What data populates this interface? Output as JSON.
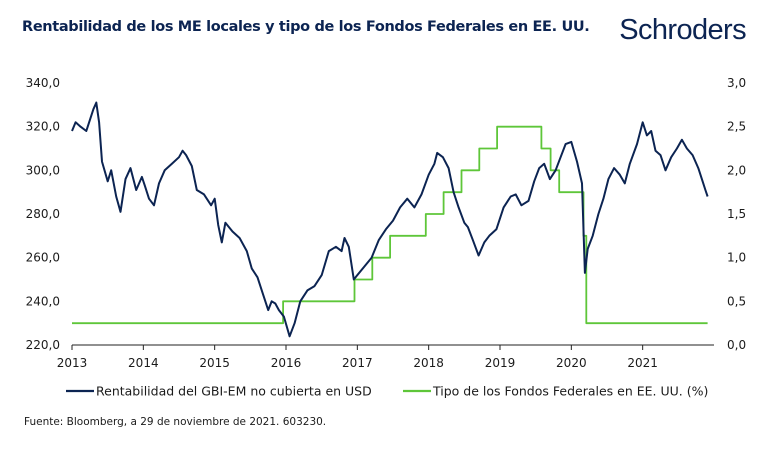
{
  "header": {
    "title": "Rentabilidad de los ME locales y tipo de los Fondos Federales en EE. UU.",
    "brand": "Schroders"
  },
  "footer": {
    "source": "Fuente: Bloomberg, a 29 de noviembre de 2021. 603230."
  },
  "colors": {
    "navy": "#0c2452",
    "green": "#5ec639"
  },
  "chart_data": {
    "type": "line",
    "title": "Rentabilidad de los ME locales y tipo de los Fondos Federales en EE. UU.",
    "xlabel": "",
    "x_ticks": [
      "2013",
      "2014",
      "2015",
      "2016",
      "2017",
      "2018",
      "2019",
      "2020",
      "2021"
    ],
    "xlim": [
      2013.0,
      2022.0
    ],
    "y_left": {
      "ticks": [
        "220,0",
        "240,0",
        "260,0",
        "280,0",
        "300,0",
        "320,0",
        "340,0"
      ],
      "ylim": [
        220,
        340
      ]
    },
    "y_right": {
      "ticks": [
        "0,0",
        "0,5",
        "1,0",
        "1,5",
        "2,0",
        "2,5",
        "3,0"
      ],
      "ylim": [
        0,
        3
      ]
    },
    "legend": {
      "position": "bottom"
    },
    "series": [
      {
        "name": "Rentabilidad del GBI-EM no cubierta en USD",
        "axis": "left",
        "points": [
          [
            2013.0,
            318
          ],
          [
            2013.05,
            322
          ],
          [
            2013.12,
            320
          ],
          [
            2013.2,
            318
          ],
          [
            2013.3,
            328
          ],
          [
            2013.34,
            331
          ],
          [
            2013.38,
            322
          ],
          [
            2013.42,
            304
          ],
          [
            2013.5,
            295
          ],
          [
            2013.55,
            300
          ],
          [
            2013.62,
            288
          ],
          [
            2013.68,
            281
          ],
          [
            2013.75,
            296
          ],
          [
            2013.82,
            301
          ],
          [
            2013.9,
            291
          ],
          [
            2013.98,
            297
          ],
          [
            2014.02,
            293
          ],
          [
            2014.08,
            287
          ],
          [
            2014.15,
            284
          ],
          [
            2014.22,
            294
          ],
          [
            2014.3,
            300
          ],
          [
            2014.4,
            303
          ],
          [
            2014.5,
            306
          ],
          [
            2014.55,
            309
          ],
          [
            2014.6,
            307
          ],
          [
            2014.68,
            302
          ],
          [
            2014.75,
            291
          ],
          [
            2014.85,
            289
          ],
          [
            2014.95,
            284
          ],
          [
            2015.0,
            287
          ],
          [
            2015.05,
            275
          ],
          [
            2015.1,
            267
          ],
          [
            2015.15,
            276
          ],
          [
            2015.25,
            272
          ],
          [
            2015.35,
            269
          ],
          [
            2015.45,
            263
          ],
          [
            2015.52,
            255
          ],
          [
            2015.6,
            251
          ],
          [
            2015.68,
            243
          ],
          [
            2015.75,
            236
          ],
          [
            2015.8,
            240
          ],
          [
            2015.85,
            239
          ],
          [
            2015.9,
            236
          ],
          [
            2015.97,
            233
          ],
          [
            2016.05,
            224
          ],
          [
            2016.12,
            230
          ],
          [
            2016.2,
            240
          ],
          [
            2016.3,
            245
          ],
          [
            2016.4,
            247
          ],
          [
            2016.5,
            252
          ],
          [
            2016.6,
            263
          ],
          [
            2016.7,
            265
          ],
          [
            2016.78,
            263
          ],
          [
            2016.82,
            269
          ],
          [
            2016.88,
            265
          ],
          [
            2016.95,
            250
          ],
          [
            2017.0,
            252
          ],
          [
            2017.1,
            256
          ],
          [
            2017.2,
            260
          ],
          [
            2017.3,
            268
          ],
          [
            2017.4,
            273
          ],
          [
            2017.5,
            277
          ],
          [
            2017.6,
            283
          ],
          [
            2017.7,
            287
          ],
          [
            2017.8,
            283
          ],
          [
            2017.9,
            289
          ],
          [
            2018.0,
            298
          ],
          [
            2018.08,
            303
          ],
          [
            2018.12,
            308
          ],
          [
            2018.2,
            306
          ],
          [
            2018.28,
            301
          ],
          [
            2018.35,
            290
          ],
          [
            2018.42,
            283
          ],
          [
            2018.5,
            276
          ],
          [
            2018.55,
            274
          ],
          [
            2018.62,
            268
          ],
          [
            2018.7,
            261
          ],
          [
            2018.78,
            267
          ],
          [
            2018.85,
            270
          ],
          [
            2018.95,
            273
          ],
          [
            2019.05,
            283
          ],
          [
            2019.15,
            288
          ],
          [
            2019.22,
            289
          ],
          [
            2019.3,
            284
          ],
          [
            2019.4,
            286
          ],
          [
            2019.48,
            295
          ],
          [
            2019.55,
            301
          ],
          [
            2019.62,
            303
          ],
          [
            2019.7,
            296
          ],
          [
            2019.78,
            300
          ],
          [
            2019.85,
            306
          ],
          [
            2019.92,
            312
          ],
          [
            2020.0,
            313
          ],
          [
            2020.08,
            304
          ],
          [
            2020.15,
            294
          ],
          [
            2020.19,
            253
          ],
          [
            2020.23,
            264
          ],
          [
            2020.3,
            270
          ],
          [
            2020.38,
            280
          ],
          [
            2020.45,
            287
          ],
          [
            2020.52,
            296
          ],
          [
            2020.6,
            301
          ],
          [
            2020.68,
            298
          ],
          [
            2020.75,
            294
          ],
          [
            2020.82,
            303
          ],
          [
            2020.92,
            312
          ],
          [
            2021.0,
            322
          ],
          [
            2021.06,
            316
          ],
          [
            2021.12,
            318
          ],
          [
            2021.18,
            309
          ],
          [
            2021.25,
            307
          ],
          [
            2021.32,
            300
          ],
          [
            2021.4,
            306
          ],
          [
            2021.48,
            310
          ],
          [
            2021.55,
            314
          ],
          [
            2021.62,
            310
          ],
          [
            2021.7,
            307
          ],
          [
            2021.78,
            301
          ],
          [
            2021.84,
            295
          ],
          [
            2021.88,
            291
          ],
          [
            2021.91,
            288
          ]
        ]
      },
      {
        "name": "Tipo de los Fondos Federales en EE. UU. (%)",
        "axis": "right",
        "step": true,
        "points": [
          [
            2013.0,
            0.25
          ],
          [
            2015.96,
            0.25
          ],
          [
            2015.96,
            0.5
          ],
          [
            2016.96,
            0.5
          ],
          [
            2016.96,
            0.75
          ],
          [
            2017.21,
            0.75
          ],
          [
            2017.21,
            1.0
          ],
          [
            2017.46,
            1.0
          ],
          [
            2017.46,
            1.25
          ],
          [
            2017.96,
            1.25
          ],
          [
            2017.96,
            1.5
          ],
          [
            2018.21,
            1.5
          ],
          [
            2018.21,
            1.75
          ],
          [
            2018.46,
            1.75
          ],
          [
            2018.46,
            2.0
          ],
          [
            2018.71,
            2.0
          ],
          [
            2018.71,
            2.25
          ],
          [
            2018.96,
            2.25
          ],
          [
            2018.96,
            2.5
          ],
          [
            2019.58,
            2.5
          ],
          [
            2019.58,
            2.25
          ],
          [
            2019.71,
            2.25
          ],
          [
            2019.71,
            2.0
          ],
          [
            2019.83,
            2.0
          ],
          [
            2019.83,
            1.75
          ],
          [
            2020.17,
            1.75
          ],
          [
            2020.17,
            1.25
          ],
          [
            2020.21,
            1.25
          ],
          [
            2020.21,
            0.25
          ],
          [
            2021.91,
            0.25
          ]
        ]
      }
    ]
  }
}
